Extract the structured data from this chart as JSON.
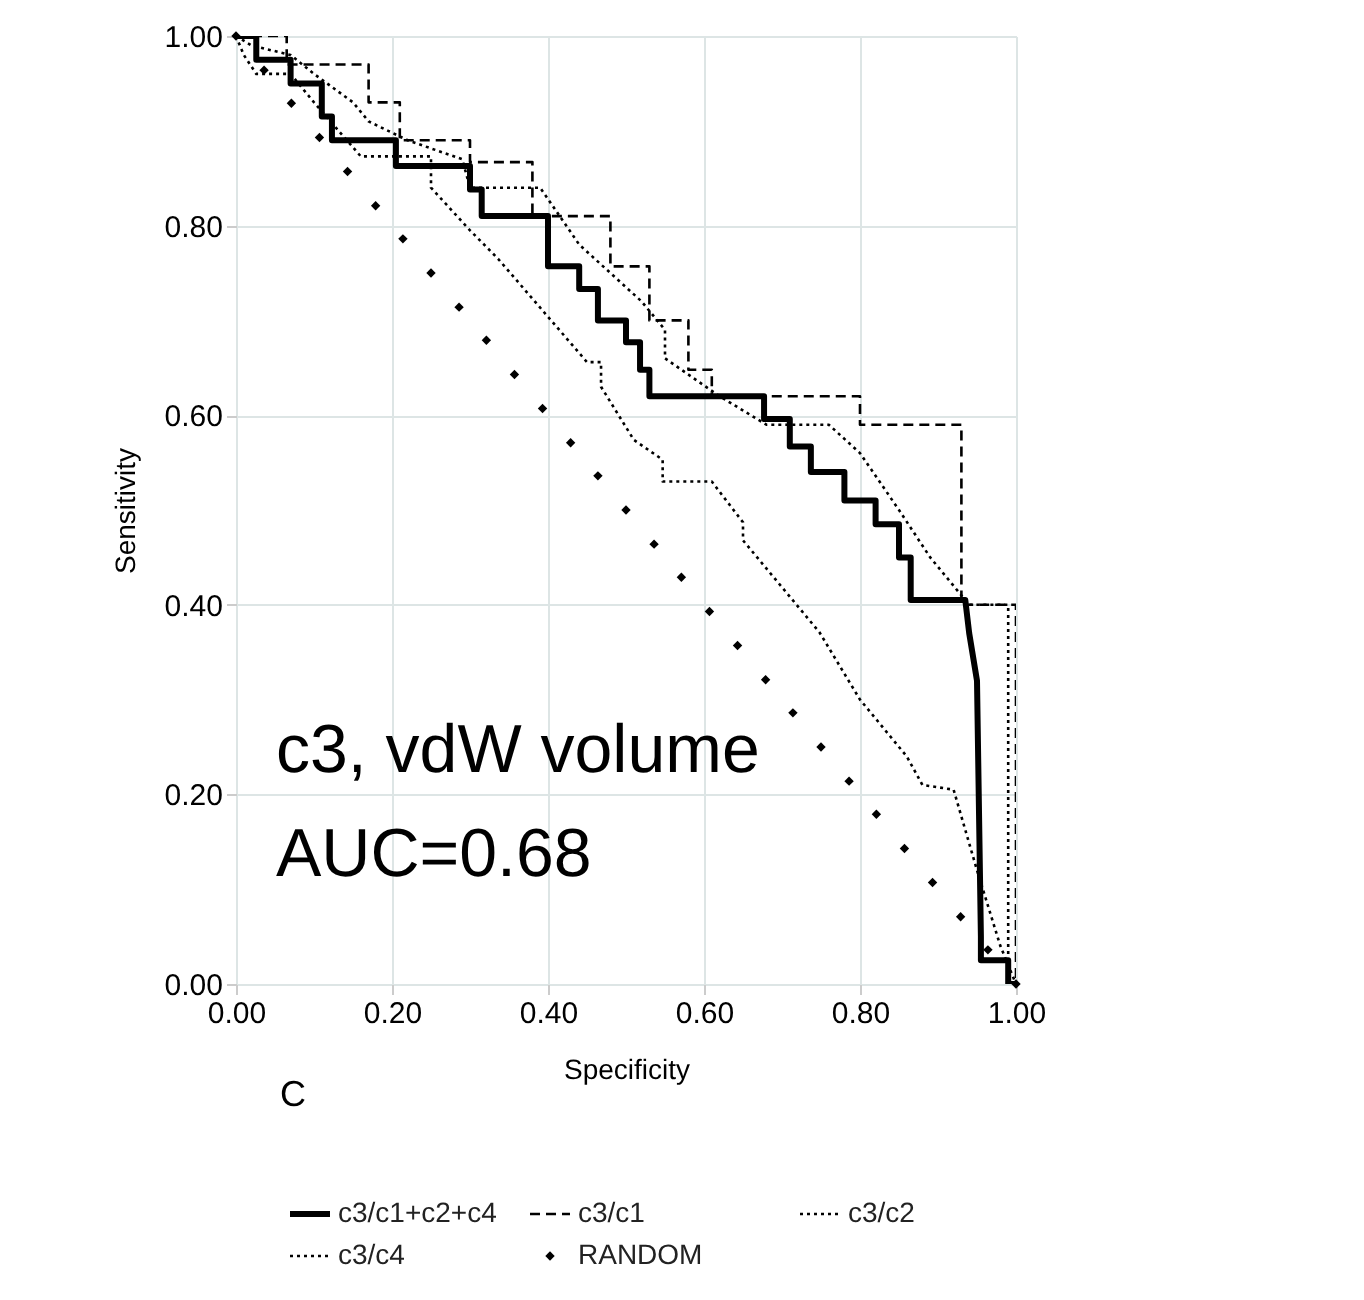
{
  "chart_data": {
    "type": "line",
    "xlabel": "Specificity",
    "ylabel": "Sensitivity",
    "annotations": [
      "c3, vdW volume",
      "AUC=0.68",
      "C"
    ],
    "xlim": [
      0,
      1
    ],
    "ylim": [
      0,
      1
    ],
    "xticks": [
      {
        "value": 0,
        "label": "0.00"
      },
      {
        "value": 0.2,
        "label": "0.20"
      },
      {
        "value": 0.4,
        "label": "0.40"
      },
      {
        "value": 0.6,
        "label": "0.60"
      },
      {
        "value": 0.8,
        "label": "0.80"
      },
      {
        "value": 1,
        "label": "1.00"
      }
    ],
    "yticks": [
      {
        "value": 0,
        "label": "0.00"
      },
      {
        "value": 0.2,
        "label": "0.20"
      },
      {
        "value": 0.4,
        "label": "0.40"
      },
      {
        "value": 0.6,
        "label": "0.60"
      },
      {
        "value": 0.8,
        "label": "0.80"
      },
      {
        "value": 1,
        "label": "1.00"
      }
    ],
    "grid": true,
    "legend": "bottom",
    "series": [
      {
        "name": "c3/c1+c2+c4",
        "color": "#000000",
        "line_style": "solid",
        "x": [
          0,
          0.026,
          0.026,
          0.07,
          0.07,
          0.11,
          0.11,
          0.123,
          0.123,
          0.205,
          0.205,
          0.3,
          0.3,
          0.315,
          0.315,
          0.4,
          0.4,
          0.44,
          0.44,
          0.464,
          0.464,
          0.5,
          0.5,
          0.518,
          0.518,
          0.53,
          0.53,
          0.677,
          0.677,
          0.71,
          0.71,
          0.737,
          0.737,
          0.78,
          0.78,
          0.82,
          0.82,
          0.85,
          0.85,
          0.865,
          0.865,
          0.935,
          0.94,
          0.95,
          0.955,
          0.955,
          0.99,
          0.99,
          1.0
        ],
        "values": [
          1.0,
          1.0,
          0.975,
          0.975,
          0.95,
          0.95,
          0.915,
          0.915,
          0.89,
          0.89,
          0.863,
          0.863,
          0.838,
          0.838,
          0.81,
          0.81,
          0.757,
          0.757,
          0.733,
          0.733,
          0.7,
          0.7,
          0.677,
          0.677,
          0.648,
          0.648,
          0.62,
          0.62,
          0.596,
          0.596,
          0.567,
          0.567,
          0.54,
          0.54,
          0.51,
          0.51,
          0.485,
          0.485,
          0.45,
          0.45,
          0.405,
          0.405,
          0.37,
          0.32,
          0.05,
          0.025,
          0.025,
          0,
          0
        ]
      },
      {
        "name": "c3/c1",
        "color": "#000000",
        "line_style": "dashed",
        "x": [
          0,
          0.065,
          0.065,
          0.17,
          0.17,
          0.21,
          0.21,
          0.3,
          0.3,
          0.38,
          0.38,
          0.48,
          0.48,
          0.53,
          0.53,
          0.58,
          0.58,
          0.61,
          0.61,
          0.8,
          0.8,
          0.93,
          0.93,
          1.0,
          1.0
        ],
        "values": [
          1,
          1,
          0.97,
          0.97,
          0.93,
          0.93,
          0.89,
          0.89,
          0.867,
          0.867,
          0.81,
          0.81,
          0.757,
          0.757,
          0.7,
          0.7,
          0.648,
          0.648,
          0.62,
          0.62,
          0.59,
          0.59,
          0.4,
          0.4,
          0
        ]
      },
      {
        "name": "c3/c2",
        "color": "#000000",
        "line_style": "dotted",
        "x": [
          0,
          0.01,
          0.026,
          0.07,
          0.1,
          0.16,
          0.25,
          0.25,
          0.3,
          0.336,
          0.45,
          0.468,
          0.468,
          0.51,
          0.547,
          0.547,
          0.61,
          0.65,
          0.65,
          0.748,
          0.8,
          0.86,
          0.88,
          0.92,
          0.95,
          0.98,
          1.0
        ],
        "values": [
          1,
          0.98,
          0.96,
          0.96,
          0.93,
          0.873,
          0.873,
          0.84,
          0.795,
          0.765,
          0.656,
          0.656,
          0.63,
          0.574,
          0.553,
          0.53,
          0.53,
          0.487,
          0.468,
          0.371,
          0.3,
          0.24,
          0.21,
          0.205,
          0.12,
          0.04,
          0
        ]
      },
      {
        "name": "c3/c4",
        "color": "#000000",
        "line_style": "dotted",
        "x": [
          0,
          0.02,
          0.07,
          0.1,
          0.15,
          0.17,
          0.22,
          0.29,
          0.3,
          0.39,
          0.44,
          0.48,
          0.52,
          0.55,
          0.55,
          0.62,
          0.68,
          0.76,
          0.8,
          0.85,
          0.89,
          0.92,
          0.94,
          0.99,
          0.99
        ],
        "values": [
          1,
          0.99,
          0.98,
          0.96,
          0.93,
          0.91,
          0.89,
          0.87,
          0.84,
          0.84,
          0.78,
          0.75,
          0.72,
          0.69,
          0.66,
          0.62,
          0.59,
          0.59,
          0.56,
          0.5,
          0.45,
          0.42,
          0.4,
          0.4,
          0
        ]
      },
      {
        "name": "RANDOM",
        "color": "#000000",
        "type": "scatter",
        "marker": "diamond",
        "x": [
          0,
          0.036,
          0.071,
          0.107,
          0.143,
          0.179,
          0.214,
          0.25,
          0.286,
          0.321,
          0.357,
          0.393,
          0.429,
          0.464,
          0.5,
          0.536,
          0.571,
          0.607,
          0.643,
          0.679,
          0.714,
          0.75,
          0.786,
          0.821,
          0.857,
          0.893,
          0.929,
          0.964,
          1.0
        ],
        "values": [
          1,
          0.964,
          0.929,
          0.893,
          0.857,
          0.821,
          0.786,
          0.75,
          0.714,
          0.679,
          0.643,
          0.607,
          0.571,
          0.536,
          0.5,
          0.464,
          0.429,
          0.393,
          0.357,
          0.321,
          0.286,
          0.25,
          0.214,
          0.179,
          0.143,
          0.107,
          0.071,
          0.036,
          0
        ]
      }
    ]
  }
}
